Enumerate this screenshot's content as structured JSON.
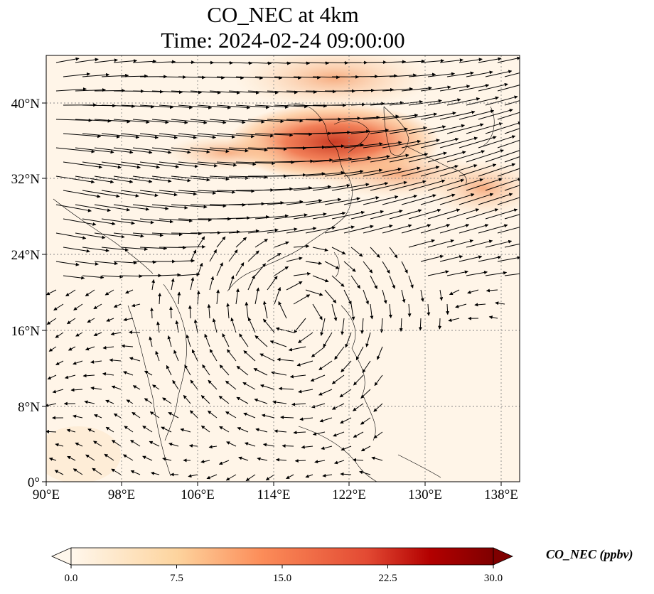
{
  "title": {
    "line1": "CO_NEC at 4km",
    "line2": "Time: 2024-02-24 09:00:00"
  },
  "axes": {
    "x_ticks": [
      "90°E",
      "98°E",
      "106°E",
      "114°E",
      "122°E",
      "130°E",
      "138°E"
    ],
    "y_ticks": [
      "40°N",
      "32°N",
      "24°N",
      "16°N",
      "8°N",
      "0°"
    ],
    "lon_range": [
      90,
      140
    ],
    "lat_range": [
      0,
      45
    ],
    "gridlines": "dotted"
  },
  "colorbar": {
    "label": "CO_NEC (ppbv)",
    "ticks": [
      "0.0",
      "7.5",
      "15.0",
      "22.5",
      "30.0"
    ],
    "range": [
      0,
      30
    ],
    "colormap": "OrRd",
    "extend": "both"
  },
  "colors": {
    "low": "#fff7ec",
    "mid": "#fdbb84",
    "high": "#d7301f",
    "max": "#7f0000"
  }
}
